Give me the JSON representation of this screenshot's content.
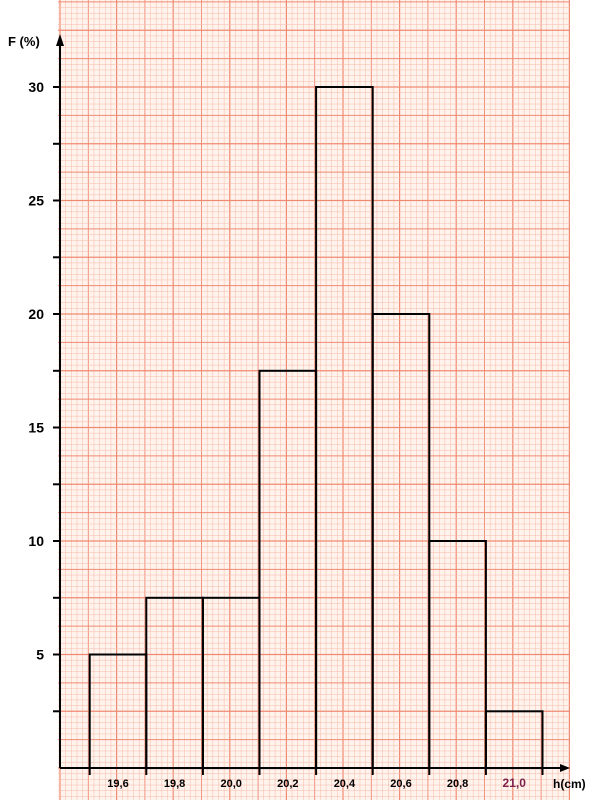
{
  "chart_data": {
    "type": "bar",
    "xlabel": "h(cm)",
    "ylabel": "F (%)",
    "x_ticks": [
      "19,6",
      "19,8",
      "20,0",
      "20,2",
      "20,4",
      "20,6",
      "20,8",
      "21,0"
    ],
    "x_tick_values": [
      19.6,
      19.8,
      20.0,
      20.2,
      20.4,
      20.6,
      20.8,
      21.0
    ],
    "highlighted_tick": "21,0",
    "y_ticks": [
      "5",
      "10",
      "15",
      "20",
      "25",
      "30"
    ],
    "y_tick_values": [
      5,
      10,
      15,
      20,
      25,
      30
    ],
    "ylim": [
      0,
      30
    ],
    "bins": [
      {
        "from": 19.5,
        "to": 19.7,
        "value": 5
      },
      {
        "from": 19.7,
        "to": 19.9,
        "value": 7.5
      },
      {
        "from": 19.9,
        "to": 20.1,
        "value": 7.5
      },
      {
        "from": 20.1,
        "to": 20.3,
        "value": 17.5
      },
      {
        "from": 20.3,
        "to": 20.5,
        "value": 30
      },
      {
        "from": 20.5,
        "to": 20.7,
        "value": 20
      },
      {
        "from": 20.7,
        "to": 20.9,
        "value": 10
      },
      {
        "from": 20.9,
        "to": 21.1,
        "value": 2.5
      }
    ],
    "grid": true,
    "colors": {
      "grid_minor": "#f7b9a6",
      "grid_major": "#ef8a72",
      "background": "#fff3ee",
      "bars": "#000000"
    }
  }
}
